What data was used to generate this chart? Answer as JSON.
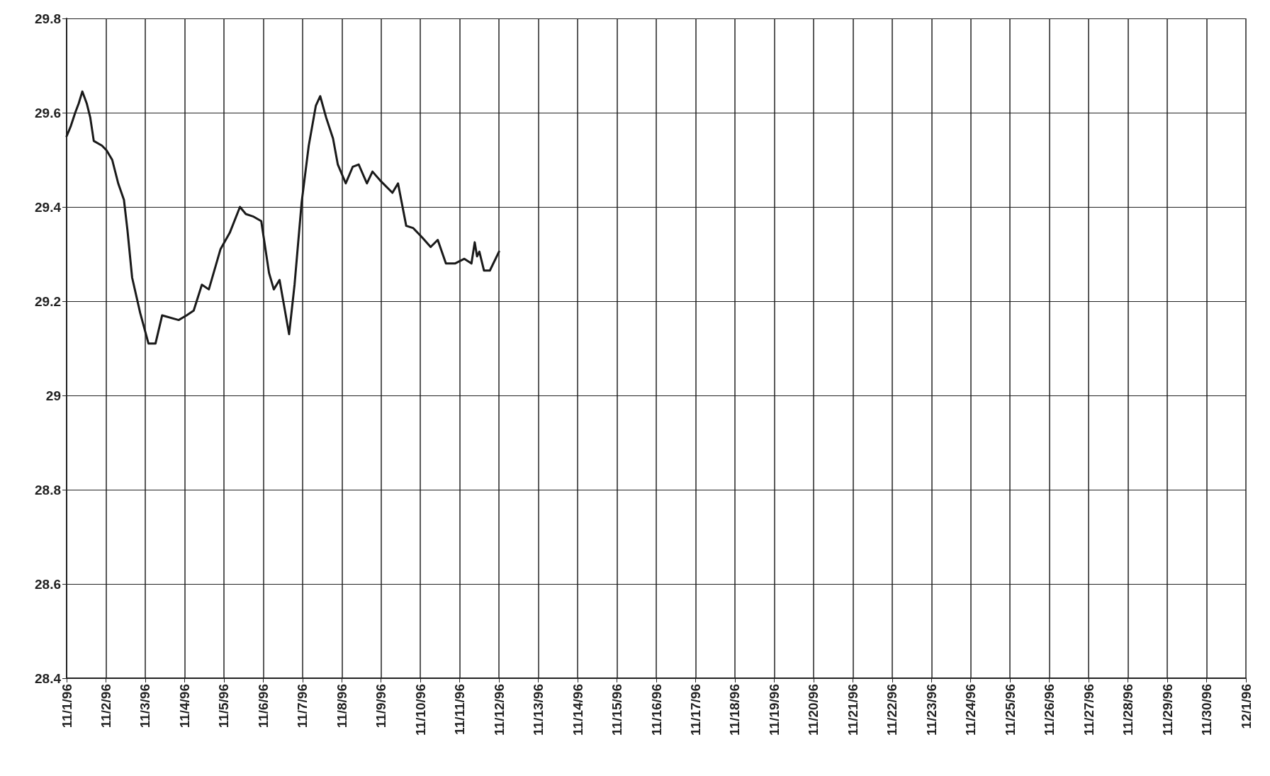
{
  "chart_data": {
    "type": "line",
    "x": [
      "1996-11-01T00:00",
      "1996-11-01T02:24",
      "1996-11-01T05:15",
      "1996-11-01T07:25",
      "1996-11-01T09:35",
      "1996-11-01T12:15",
      "1996-11-01T14:25",
      "1996-11-01T16:35",
      "1996-11-01T21:35",
      "1996-11-02T00:25",
      "1996-11-02T03:50",
      "1996-11-02T07:30",
      "1996-11-02T11:00",
      "1996-11-02T13:10",
      "1996-11-02T16:00",
      "1996-11-02T20:55",
      "1996-11-03T02:00",
      "1996-11-03T06:15",
      "1996-11-03T10:20",
      "1996-11-03T20:25",
      "1996-11-04T01:15",
      "1996-11-04T05:35",
      "1996-11-04T10:35",
      "1996-11-04T14:50",
      "1996-11-04T21:55",
      "1996-11-05T03:35",
      "1996-11-05T09:50",
      "1996-11-05T13:25",
      "1996-11-05T17:45",
      "1996-11-05T22:50",
      "1996-11-06T03:35",
      "1996-11-06T06:30",
      "1996-11-06T10:00",
      "1996-11-06T15:50",
      "1996-11-06T19:10",
      "1996-11-06T23:30",
      "1996-11-07T03:50",
      "1996-11-07T08:10",
      "1996-11-07T10:50",
      "1996-11-07T14:25",
      "1996-11-07T18:40",
      "1996-11-07T21:35",
      "1996-11-08T02:25",
      "1996-11-08T06:40",
      "1996-11-08T10:20",
      "1996-11-08T15:20",
      "1996-11-08T18:45",
      "1996-11-08T23:45",
      "1996-11-09T06:55",
      "1996-11-09T10:20",
      "1996-11-09T15:20",
      "1996-11-09T19:40",
      "1996-11-10T01:10",
      "1996-11-10T06:15",
      "1996-11-10T10:35",
      "1996-11-10T15:35",
      "1996-11-10T21:05",
      "1996-11-11T02:50",
      "1996-11-11T07:10",
      "1996-11-11T09:10",
      "1996-11-11T10:35",
      "1996-11-11T12:00",
      "1996-11-11T14:50",
      "1996-11-11T18:25",
      "1996-11-12T00:00"
    ],
    "series": [
      {
        "color": "#1a1a1a",
        "values": [
          29.55,
          29.57,
          29.6,
          29.62,
          29.645,
          29.62,
          29.59,
          29.54,
          29.53,
          29.52,
          29.5,
          29.45,
          29.415,
          29.35,
          29.25,
          29.175,
          29.11,
          29.11,
          29.17,
          29.16,
          29.17,
          29.18,
          29.235,
          29.225,
          29.31,
          29.345,
          29.4,
          29.385,
          29.38,
          29.37,
          29.26,
          29.225,
          29.245,
          29.13,
          29.235,
          29.41,
          29.53,
          29.615,
          29.635,
          29.59,
          29.545,
          29.49,
          29.45,
          29.485,
          29.49,
          29.45,
          29.475,
          29.455,
          29.43,
          29.45,
          29.36,
          29.355,
          29.335,
          29.315,
          29.33,
          29.28,
          29.28,
          29.29,
          29.28,
          29.325,
          29.295,
          29.305,
          29.265,
          29.265,
          29.305
        ]
      }
    ],
    "xlim": [
      "1996-11-01",
      "1996-12-01"
    ],
    "xticks": [
      {
        "value": "1996-11-01",
        "label": "11/1/96"
      },
      {
        "value": "1996-11-02",
        "label": "11/2/96"
      },
      {
        "value": "1996-11-03",
        "label": "11/3/96"
      },
      {
        "value": "1996-11-04",
        "label": "11/4/96"
      },
      {
        "value": "1996-11-05",
        "label": "11/5/96"
      },
      {
        "value": "1996-11-06",
        "label": "11/6/96"
      },
      {
        "value": "1996-11-07",
        "label": "11/7/96"
      },
      {
        "value": "1996-11-08",
        "label": "11/8/96"
      },
      {
        "value": "1996-11-09",
        "label": "11/9/96"
      },
      {
        "value": "1996-11-10",
        "label": "11/10/96"
      },
      {
        "value": "1996-11-11",
        "label": "11/11/96"
      },
      {
        "value": "1996-11-12",
        "label": "11/12/96"
      },
      {
        "value": "1996-11-13",
        "label": "11/13/96"
      },
      {
        "value": "1996-11-14",
        "label": "11/14/96"
      },
      {
        "value": "1996-11-15",
        "label": "11/15/96"
      },
      {
        "value": "1996-11-16",
        "label": "11/16/96"
      },
      {
        "value": "1996-11-17",
        "label": "11/17/96"
      },
      {
        "value": "1996-11-18",
        "label": "11/18/96"
      },
      {
        "value": "1996-11-19",
        "label": "11/19/96"
      },
      {
        "value": "1996-11-20",
        "label": "11/20/96"
      },
      {
        "value": "1996-11-21",
        "label": "11/21/96"
      },
      {
        "value": "1996-11-22",
        "label": "11/22/96"
      },
      {
        "value": "1996-11-23",
        "label": "11/23/96"
      },
      {
        "value": "1996-11-24",
        "label": "11/24/96"
      },
      {
        "value": "1996-11-25",
        "label": "11/25/96"
      },
      {
        "value": "1996-11-26",
        "label": "11/26/96"
      },
      {
        "value": "1996-11-27",
        "label": "11/27/96"
      },
      {
        "value": "1996-11-28",
        "label": "11/28/96"
      },
      {
        "value": "1996-11-29",
        "label": "11/29/96"
      },
      {
        "value": "1996-11-30",
        "label": "11/30/96"
      },
      {
        "value": "1996-12-01",
        "label": "12/1/96"
      }
    ],
    "ylim": [
      28.4,
      29.8
    ],
    "yticks": [
      28.4,
      28.6,
      28.8,
      29,
      29.2,
      29.4,
      29.6,
      29.8
    ],
    "grid": true,
    "marker": "none",
    "line_style": "solid"
  }
}
